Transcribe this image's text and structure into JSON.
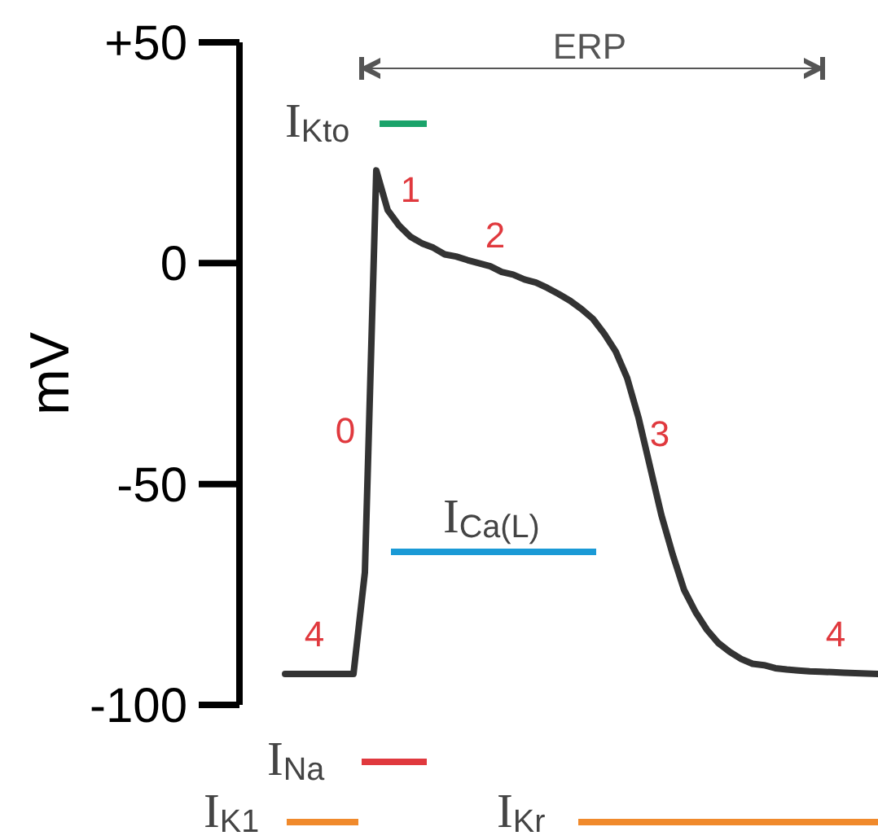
{
  "chart_data": {
    "type": "line",
    "ylabel": "mV",
    "categories": [
      null,
      null,
      null,
      null,
      null,
      null,
      null,
      null,
      null,
      null,
      null,
      null,
      null,
      null,
      null,
      null,
      null,
      null,
      null,
      null,
      null,
      null,
      null,
      null,
      null,
      null,
      null,
      null,
      null,
      null,
      null,
      null,
      null,
      null,
      null,
      null,
      null,
      null,
      null,
      null,
      null,
      null,
      null,
      null,
      null,
      null,
      null,
      null,
      null,
      null,
      null,
      null,
      null
    ],
    "series": [
      {
        "color": "#333333",
        "values": [
          -93,
          -93,
          -93,
          -93,
          -93,
          -93,
          -93,
          -70,
          21,
          12,
          8.5,
          6,
          4.5,
          3.5,
          2,
          1.5,
          0.7,
          0,
          -0.7,
          -2,
          -2.6,
          -3.7,
          -4.4,
          -5.6,
          -7,
          -8.5,
          -10.4,
          -12.6,
          -16,
          -20,
          -26,
          -35,
          -46,
          -57,
          -66,
          -74,
          -79,
          -83,
          -86,
          -88,
          -89.6,
          -90.7,
          -91,
          -91.7,
          -92,
          -92.2,
          -92.4,
          -92.5,
          -92.6,
          -92.7,
          -92.8,
          -92.9,
          -93
        ]
      }
    ],
    "ylim": [
      -100,
      50
    ],
    "yticks": [
      {
        "value": 50,
        "label": "+50"
      },
      0,
      -50,
      -100
    ],
    "tick_labels": "y",
    "annotations": [
      "ERP",
      "I$_{Kto}$",
      "1",
      "2",
      "0",
      "3",
      "I$_{Ca(L)}$",
      "4",
      "4",
      "I$_{Na}$",
      "I$_{K1}$",
      "I$_{Kr}$"
    ]
  }
}
